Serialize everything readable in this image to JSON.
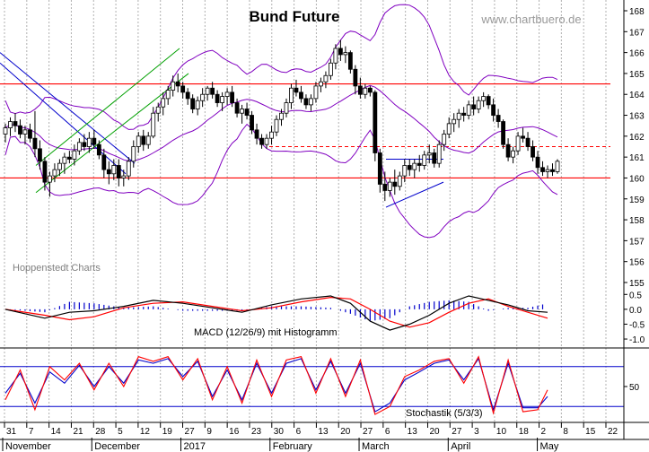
{
  "chart_data": [
    {
      "panel": "price",
      "type": "candlestick",
      "title": "Bund Future",
      "watermark": "www.chartbuero.de",
      "credit": "Hoppenstedt Charts",
      "ylim": [
        155,
        168
      ],
      "y_ticks": [
        "155",
        "156",
        "157",
        "158",
        "159",
        "160",
        "161",
        "162",
        "163",
        "164",
        "165",
        "166",
        "167",
        "168"
      ],
      "x_ticks": [
        "31",
        "7",
        "14",
        "21",
        "28",
        "5",
        "12",
        "19",
        "27",
        "9",
        "16",
        "23",
        "30",
        "6",
        "13",
        "20",
        "27",
        "6",
        "13",
        "20",
        "27",
        "3",
        "10",
        "18",
        "2",
        "8",
        "15",
        "22"
      ],
      "months": [
        "November",
        "December",
        "2017",
        "February",
        "March",
        "April",
        "May"
      ],
      "grid": true,
      "horizontal_lines": [
        164.5,
        160.0
      ],
      "dashed_line": 161.5,
      "colors": {
        "candle": "#000000",
        "bollinger": "#8000c0",
        "horizontal": "#ff0000",
        "trend_down": "#0000cc",
        "channel": "#00a000"
      },
      "ohlc": [
        [
          162.1,
          162.6,
          161.7,
          162.4
        ],
        [
          162.4,
          162.9,
          162.0,
          162.7
        ],
        [
          162.7,
          163.1,
          162.2,
          162.5
        ],
        [
          162.5,
          162.8,
          161.9,
          162.1
        ],
        [
          162.1,
          162.5,
          161.6,
          162.3
        ],
        [
          162.3,
          162.6,
          161.7,
          161.9
        ],
        [
          161.9,
          163.2,
          161.0,
          161.4
        ],
        [
          161.4,
          161.8,
          160.4,
          160.8
        ],
        [
          160.8,
          161.0,
          159.4,
          159.8
        ],
        [
          159.8,
          160.3,
          159.1,
          160.1
        ],
        [
          160.1,
          160.7,
          159.8,
          160.4
        ],
        [
          160.4,
          160.9,
          160.1,
          160.7
        ],
        [
          160.7,
          161.2,
          160.2,
          161.0
        ],
        [
          161.0,
          161.3,
          160.7,
          160.9
        ],
        [
          160.9,
          161.6,
          160.6,
          161.3
        ],
        [
          161.3,
          161.9,
          161.1,
          161.7
        ],
        [
          161.7,
          162.1,
          161.3,
          161.5
        ],
        [
          161.5,
          162.2,
          161.2,
          161.9
        ],
        [
          161.9,
          162.3,
          161.4,
          161.6
        ],
        [
          161.6,
          161.8,
          160.9,
          161.1
        ],
        [
          161.1,
          161.4,
          160.0,
          160.4
        ],
        [
          160.4,
          160.8,
          159.7,
          160.2
        ],
        [
          160.2,
          160.9,
          159.9,
          160.6
        ],
        [
          160.6,
          160.9,
          159.6,
          160.0
        ],
        [
          160.0,
          160.4,
          159.6,
          160.1
        ],
        [
          160.1,
          161.0,
          159.9,
          160.8
        ],
        [
          160.8,
          161.8,
          160.5,
          161.5
        ],
        [
          161.5,
          162.2,
          161.2,
          162.0
        ],
        [
          162.0,
          162.3,
          161.3,
          161.6
        ],
        [
          161.6,
          162.2,
          161.4,
          162.0
        ],
        [
          162.0,
          163.4,
          161.9,
          163.1
        ],
        [
          163.1,
          163.6,
          162.7,
          163.4
        ],
        [
          163.4,
          164.1,
          163.0,
          163.8
        ],
        [
          163.8,
          164.4,
          163.5,
          164.2
        ],
        [
          164.2,
          164.9,
          163.9,
          164.6
        ],
        [
          164.6,
          165.0,
          164.1,
          164.4
        ],
        [
          164.4,
          164.6,
          163.8,
          164.1
        ],
        [
          164.1,
          164.3,
          163.5,
          163.8
        ],
        [
          163.8,
          164.0,
          163.1,
          163.3
        ],
        [
          163.3,
          163.9,
          163.0,
          163.7
        ],
        [
          163.7,
          164.3,
          163.4,
          164.0
        ],
        [
          164.0,
          164.4,
          163.7,
          164.3
        ],
        [
          164.3,
          164.6,
          163.8,
          164.0
        ],
        [
          164.0,
          164.2,
          163.4,
          163.6
        ],
        [
          163.6,
          164.1,
          163.2,
          163.9
        ],
        [
          163.9,
          164.3,
          163.5,
          164.1
        ],
        [
          164.1,
          164.4,
          163.4,
          163.6
        ],
        [
          163.6,
          163.8,
          162.9,
          163.1
        ],
        [
          163.1,
          163.5,
          162.6,
          163.3
        ],
        [
          163.3,
          163.6,
          162.8,
          163.0
        ],
        [
          163.0,
          163.2,
          162.1,
          162.3
        ],
        [
          162.3,
          162.6,
          161.6,
          161.9
        ],
        [
          161.9,
          162.1,
          161.4,
          161.6
        ],
        [
          161.6,
          162.1,
          161.4,
          161.9
        ],
        [
          161.9,
          162.5,
          161.6,
          162.2
        ],
        [
          162.2,
          163.0,
          162.0,
          162.8
        ],
        [
          162.8,
          163.3,
          162.5,
          163.1
        ],
        [
          163.1,
          163.8,
          162.9,
          163.6
        ],
        [
          163.6,
          164.5,
          163.3,
          164.3
        ],
        [
          164.3,
          164.7,
          163.9,
          164.1
        ],
        [
          164.1,
          164.4,
          163.6,
          163.8
        ],
        [
          163.8,
          164.0,
          163.3,
          163.5
        ],
        [
          163.5,
          164.0,
          163.2,
          163.8
        ],
        [
          163.8,
          164.6,
          163.6,
          164.4
        ],
        [
          164.4,
          164.8,
          164.1,
          164.6
        ],
        [
          164.6,
          165.1,
          164.3,
          164.9
        ],
        [
          164.9,
          165.7,
          164.7,
          165.5
        ],
        [
          165.5,
          166.4,
          165.2,
          166.2
        ],
        [
          166.2,
          166.6,
          165.6,
          165.9
        ],
        [
          165.9,
          166.3,
          165.5,
          166.0
        ],
        [
          166.0,
          166.1,
          165.0,
          165.2
        ],
        [
          165.2,
          165.4,
          164.0,
          164.4
        ],
        [
          164.4,
          164.8,
          163.8,
          164.0
        ],
        [
          164.0,
          164.5,
          163.8,
          164.3
        ],
        [
          164.3,
          164.4,
          163.9,
          164.1
        ],
        [
          164.1,
          164.2,
          160.8,
          161.2
        ],
        [
          161.2,
          161.4,
          159.3,
          159.7
        ],
        [
          159.7,
          160.3,
          158.9,
          159.4
        ],
        [
          159.4,
          160.0,
          159.1,
          159.8
        ],
        [
          159.8,
          160.4,
          159.2,
          159.6
        ],
        [
          159.6,
          160.3,
          159.4,
          160.1
        ],
        [
          160.1,
          160.9,
          159.8,
          160.6
        ],
        [
          160.6,
          160.9,
          160.1,
          160.4
        ],
        [
          160.4,
          160.9,
          160.0,
          160.7
        ],
        [
          160.7,
          161.1,
          160.3,
          160.6
        ],
        [
          160.6,
          161.3,
          160.4,
          161.1
        ],
        [
          161.1,
          161.6,
          160.7,
          161.2
        ],
        [
          161.2,
          161.4,
          160.5,
          160.7
        ],
        [
          160.7,
          161.8,
          160.5,
          161.6
        ],
        [
          161.6,
          162.3,
          161.3,
          162.1
        ],
        [
          162.1,
          162.9,
          161.9,
          162.6
        ],
        [
          162.6,
          163.1,
          162.2,
          162.8
        ],
        [
          162.8,
          163.3,
          162.4,
          163.1
        ],
        [
          163.1,
          163.4,
          162.7,
          163.0
        ],
        [
          163.0,
          163.7,
          162.8,
          163.5
        ],
        [
          163.5,
          163.9,
          163.0,
          163.3
        ],
        [
          163.3,
          163.9,
          163.1,
          163.7
        ],
        [
          163.7,
          164.1,
          163.4,
          163.9
        ],
        [
          163.9,
          164.0,
          163.3,
          163.5
        ],
        [
          163.5,
          163.8,
          162.7,
          163.0
        ],
        [
          163.0,
          163.3,
          162.4,
          162.7
        ],
        [
          162.7,
          162.8,
          161.4,
          161.6
        ],
        [
          161.6,
          161.9,
          160.8,
          161.0
        ],
        [
          161.0,
          161.5,
          160.7,
          161.3
        ],
        [
          161.3,
          162.2,
          161.1,
          162.0
        ],
        [
          162.0,
          162.4,
          161.7,
          161.9
        ],
        [
          161.9,
          162.2,
          161.3,
          161.5
        ],
        [
          161.5,
          161.8,
          160.8,
          161.0
        ],
        [
          161.0,
          161.3,
          160.2,
          160.5
        ],
        [
          160.5,
          160.8,
          160.1,
          160.3
        ],
        [
          160.3,
          160.6,
          160.0,
          160.4
        ],
        [
          160.4,
          160.7,
          160.1,
          160.3
        ],
        [
          160.3,
          160.9,
          160.2,
          160.8
        ]
      ]
    },
    {
      "panel": "macd",
      "type": "line",
      "label": "MACD (12/26/9) mit Histogramm",
      "ylim": [
        -1.3,
        0.75
      ],
      "y_ticks": [
        "0.5",
        "0.0",
        "-0.5",
        "-1.0"
      ],
      "colors": {
        "macd": "#000000",
        "signal": "#ff0000",
        "histogram": "#0000cc"
      },
      "x": [
        0,
        8,
        13,
        18,
        24,
        30,
        36,
        42,
        48,
        54,
        60,
        66,
        70,
        74,
        78,
        82,
        86,
        90,
        94,
        98,
        102,
        106,
        110
      ],
      "macd": [
        0.0,
        -0.3,
        -0.1,
        -0.05,
        0.1,
        0.3,
        0.2,
        0.05,
        -0.1,
        0.15,
        0.35,
        0.45,
        0.2,
        -0.4,
        -0.7,
        -0.5,
        -0.2,
        0.2,
        0.45,
        0.3,
        0.15,
        -0.05,
        -0.1
      ],
      "signal": [
        0.0,
        -0.2,
        -0.35,
        -0.25,
        0.05,
        0.2,
        0.25,
        0.1,
        -0.05,
        0.05,
        0.25,
        0.4,
        0.35,
        0.0,
        -0.4,
        -0.6,
        -0.45,
        -0.1,
        0.2,
        0.35,
        0.1,
        -0.1,
        -0.3
      ]
    },
    {
      "panel": "stochastic",
      "type": "line",
      "label": "Stochastik (5/3/3)",
      "ylim": [
        0,
        100
      ],
      "y_ticks": [
        "50"
      ],
      "reference_lines": [
        80,
        20
      ],
      "colors": {
        "k": "#ff0000",
        "d": "#0000cc",
        "ref": "#0000cc"
      },
      "x": [
        0,
        3,
        6,
        9,
        12,
        15,
        18,
        21,
        24,
        27,
        30,
        33,
        36,
        39,
        42,
        45,
        48,
        51,
        54,
        57,
        60,
        63,
        66,
        69,
        72,
        75,
        78,
        81,
        84,
        87,
        90,
        93,
        96,
        99,
        102,
        105,
        108,
        110
      ],
      "k": [
        30,
        75,
        15,
        80,
        60,
        85,
        45,
        85,
        50,
        95,
        88,
        95,
        60,
        92,
        30,
        80,
        25,
        90,
        35,
        90,
        95,
        40,
        92,
        35,
        90,
        8,
        20,
        65,
        75,
        88,
        92,
        55,
        95,
        10,
        90,
        12,
        15,
        45
      ],
      "d": [
        40,
        70,
        25,
        72,
        55,
        82,
        50,
        80,
        55,
        90,
        85,
        92,
        65,
        88,
        35,
        75,
        30,
        85,
        40,
        85,
        92,
        45,
        88,
        40,
        85,
        12,
        25,
        60,
        72,
        85,
        90,
        60,
        92,
        15,
        85,
        18,
        18,
        35
      ]
    }
  ]
}
